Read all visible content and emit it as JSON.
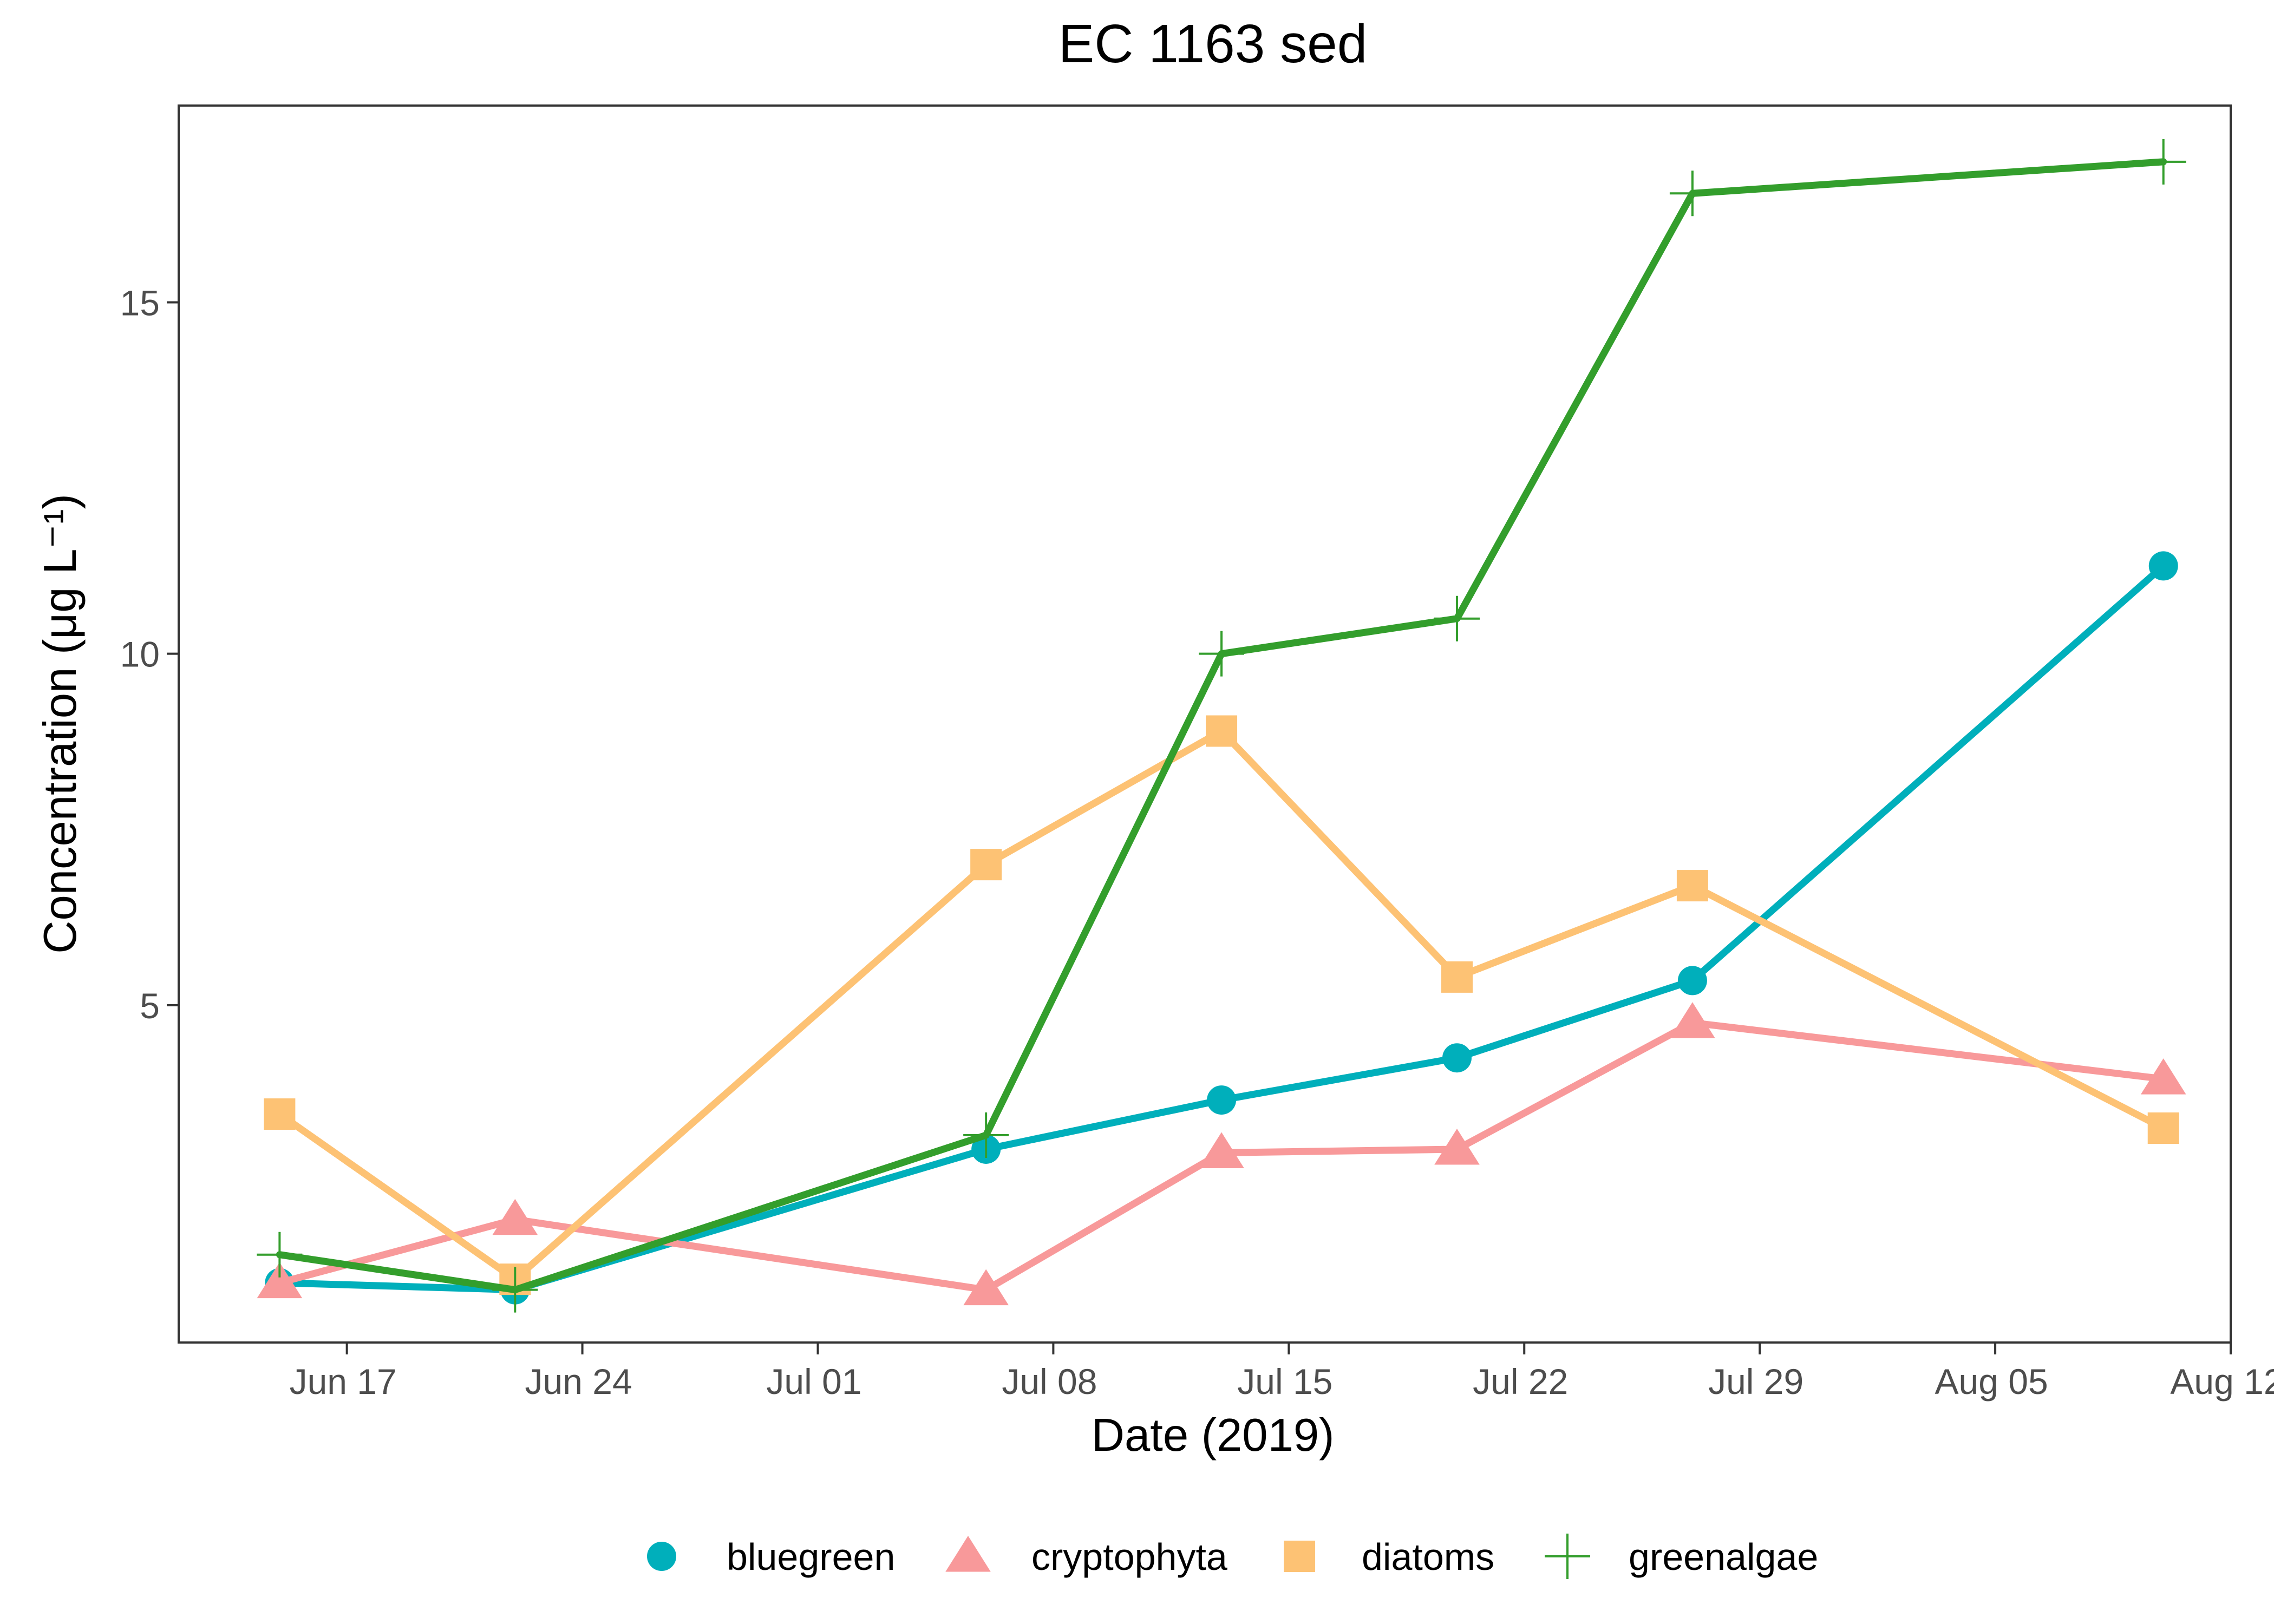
{
  "chart_data": {
    "type": "line",
    "title": "EC 1163 sed",
    "xlabel": "Date (2019)",
    "ylabel": "Concentration (μg L⁻¹)",
    "ylim": [
      0.2,
      17.8
    ],
    "xlim": [
      "2019-06-12",
      "2019-08-12"
    ],
    "x_ticks": [
      {
        "date": "2019-06-17",
        "label": "Jun 17"
      },
      {
        "date": "2019-06-24",
        "label": "Jun 24"
      },
      {
        "date": "2019-07-01",
        "label": "Jul 01"
      },
      {
        "date": "2019-07-08",
        "label": "Jul 08"
      },
      {
        "date": "2019-07-15",
        "label": "Jul 15"
      },
      {
        "date": "2019-07-22",
        "label": "Jul 22"
      },
      {
        "date": "2019-07-29",
        "label": "Jul 29"
      },
      {
        "date": "2019-08-05",
        "label": "Aug 05"
      },
      {
        "date": "2019-08-12",
        "label": "Aug 12"
      }
    ],
    "y_ticks": [
      5,
      10,
      15
    ],
    "grid": false,
    "legend_position": "bottom",
    "x": [
      "2019-06-15",
      "2019-06-22",
      "2019-07-06",
      "2019-07-13",
      "2019-07-20",
      "2019-07-27",
      "2019-08-10"
    ],
    "series": [
      {
        "name": "bluegreen",
        "color": "#00AFBB",
        "marker": "circle",
        "values": [
          1.05,
          0.95,
          2.95,
          3.65,
          4.25,
          5.35,
          11.25
        ]
      },
      {
        "name": "cryptophyta",
        "color": "#F8999A",
        "marker": "triangle",
        "values": [
          1.05,
          1.95,
          0.95,
          2.9,
          2.95,
          4.75,
          3.95
        ]
      },
      {
        "name": "diatoms",
        "color": "#FDC274",
        "marker": "square",
        "values": [
          3.45,
          1.1,
          7.0,
          8.9,
          5.4,
          6.7,
          3.25
        ]
      },
      {
        "name": "greenalgae",
        "color": "#339E2C",
        "marker": "plus",
        "values": [
          1.45,
          0.95,
          3.15,
          10.0,
          10.5,
          16.55,
          17.0
        ]
      }
    ]
  }
}
